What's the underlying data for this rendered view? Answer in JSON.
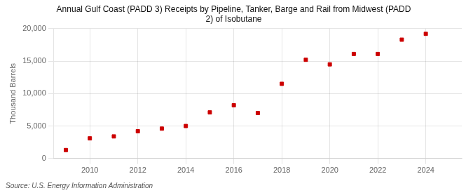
{
  "chart_data": {
    "type": "scatter",
    "title": "Annual Gulf Coast (PADD 3) Receipts by Pipeline, Tanker, Barge and Rail from Midwest (PADD\n2) of Isobutane",
    "ylabel": "Thousand Barrels",
    "source": "Source: U.S. Energy Information Administration",
    "x": [
      2009,
      2010,
      2011,
      2012,
      2013,
      2014,
      2015,
      2016,
      2017,
      2018,
      2019,
      2020,
      2021,
      2022,
      2023,
      2024
    ],
    "values": [
      1300,
      3100,
      3400,
      4200,
      4600,
      5000,
      7100,
      8200,
      7000,
      11500,
      15200,
      14500,
      16100,
      16100,
      18300,
      19200
    ],
    "color": "#cc0000",
    "marker": "square",
    "grid": true,
    "xlim": [
      2008.5,
      2025.5
    ],
    "xticks": [
      2010,
      2012,
      2014,
      2016,
      2018,
      2020,
      2022,
      2024
    ],
    "ylim": [
      0,
      20000
    ],
    "yticks": [
      0,
      {
        "value": 5000,
        "label": "5,000"
      },
      {
        "value": 10000,
        "label": "10,000"
      },
      {
        "value": 15000,
        "label": "15,000"
      },
      {
        "value": 20000,
        "label": "20,000"
      }
    ]
  }
}
